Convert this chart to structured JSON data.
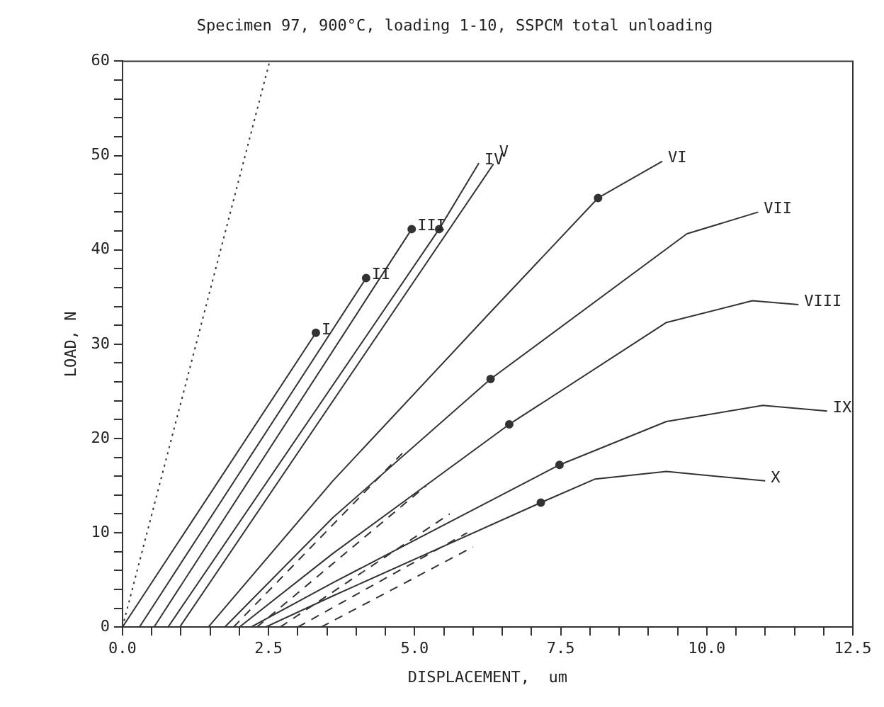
{
  "chart_data": {
    "type": "line",
    "title": "Specimen 97, 900°C, loading 1-10, SSPCM total unloading",
    "xlabel": "DISPLACEMENT,  um",
    "ylabel": "LOAD, N",
    "xlim": [
      0,
      12.5
    ],
    "ylim": [
      0,
      60
    ],
    "xticks": [
      {
        "value": 0,
        "label": "0.0"
      },
      {
        "value": 0.5,
        "label": null
      },
      {
        "value": 1,
        "label": null
      },
      {
        "value": 1.5,
        "label": null
      },
      {
        "value": 2,
        "label": null
      },
      {
        "value": 2.5,
        "label": "2.5"
      },
      {
        "value": 3,
        "label": null
      },
      {
        "value": 3.5,
        "label": null
      },
      {
        "value": 4,
        "label": null
      },
      {
        "value": 4.5,
        "label": null
      },
      {
        "value": 5,
        "label": "5.0"
      },
      {
        "value": 5.5,
        "label": null
      },
      {
        "value": 6,
        "label": null
      },
      {
        "value": 6.5,
        "label": null
      },
      {
        "value": 7,
        "label": null
      },
      {
        "value": 7.5,
        "label": "7.5"
      },
      {
        "value": 8,
        "label": null
      },
      {
        "value": 8.5,
        "label": null
      },
      {
        "value": 9,
        "label": null
      },
      {
        "value": 9.5,
        "label": null
      },
      {
        "value": 10,
        "label": "10.0"
      },
      {
        "value": 10.5,
        "label": null
      },
      {
        "value": 11,
        "label": null
      },
      {
        "value": 11.5,
        "label": null
      },
      {
        "value": 12,
        "label": null
      },
      {
        "value": 12.5,
        "label": "12.5"
      }
    ],
    "yticks": [
      0,
      {
        "value": 2,
        "label": null
      },
      {
        "value": 4,
        "label": null
      },
      {
        "value": 6,
        "label": null
      },
      {
        "value": 8,
        "label": null
      },
      10,
      {
        "value": 12,
        "label": null
      },
      {
        "value": 14,
        "label": null
      },
      {
        "value": 16,
        "label": null
      },
      {
        "value": 18,
        "label": null
      },
      20,
      {
        "value": 22,
        "label": null
      },
      {
        "value": 24,
        "label": null
      },
      {
        "value": 26,
        "label": null
      },
      {
        "value": 28,
        "label": null
      },
      30,
      {
        "value": 32,
        "label": null
      },
      {
        "value": 34,
        "label": null
      },
      {
        "value": 36,
        "label": null
      },
      {
        "value": 38,
        "label": null
      },
      40,
      {
        "value": 42,
        "label": null
      },
      {
        "value": 44,
        "label": null
      },
      {
        "value": 46,
        "label": null
      },
      {
        "value": 48,
        "label": null
      },
      50,
      {
        "value": 52,
        "label": null
      },
      {
        "value": 54,
        "label": null
      },
      {
        "value": 56,
        "label": null
      },
      {
        "value": 58,
        "label": null
      },
      60
    ],
    "grid": false,
    "legend": false,
    "series": [
      {
        "type": "line",
        "color": "#333333",
        "line_style": "dotted",
        "x": [
          0,
          2.52
        ],
        "values": [
          0,
          60
        ]
      },
      {
        "type": "line",
        "color": "#333333",
        "line_style": "solid",
        "x": [
          0,
          3.31
        ],
        "values": [
          0,
          31.2
        ]
      },
      {
        "type": "line",
        "color": "#333333",
        "line_style": "solid",
        "x": [
          0.29,
          4.17
        ],
        "values": [
          0,
          37.0
        ]
      },
      {
        "type": "line",
        "color": "#333333",
        "line_style": "solid",
        "x": [
          0.54,
          4.95
        ],
        "values": [
          0,
          42.2
        ]
      },
      {
        "type": "line",
        "color": "#333333",
        "line_style": "solid",
        "x": [
          0.78,
          5.42,
          6.1
        ],
        "values": [
          0,
          42.2,
          49.2
        ]
      },
      {
        "type": "line",
        "color": "#333333",
        "line_style": "solid",
        "x": [
          0.98,
          6.35
        ],
        "values": [
          0,
          49.1
        ]
      },
      {
        "type": "line",
        "color": "#333333",
        "line_style": "solid",
        "x": [
          1.47,
          3.6,
          6.3,
          8.14,
          9.24
        ],
        "values": [
          0,
          15.5,
          33.4,
          45.5,
          49.4
        ]
      },
      {
        "type": "line",
        "color": "#333333",
        "line_style": "solid",
        "x": [
          1.75,
          3.6,
          6.3,
          9.66,
          10.88
        ],
        "values": [
          0,
          11.6,
          26.3,
          41.7,
          44.0
        ]
      },
      {
        "type": "line",
        "color": "#333333",
        "line_style": "solid",
        "x": [
          2.0,
          3.6,
          6.62,
          9.31,
          10.78,
          11.57
        ],
        "values": [
          0,
          7.8,
          21.5,
          32.3,
          34.6,
          34.2
        ]
      },
      {
        "type": "line",
        "color": "#333333",
        "line_style": "solid",
        "x": [
          2.2,
          3.6,
          7.48,
          9.31,
          10.96,
          12.06
        ],
        "values": [
          0,
          4.7,
          17.2,
          21.8,
          23.5,
          22.9
        ]
      },
      {
        "type": "line",
        "color": "#333333",
        "line_style": "solid",
        "x": [
          2.45,
          3.6,
          7.16,
          8.09,
          9.31,
          11.0
        ],
        "values": [
          0,
          3.3,
          13.2,
          15.7,
          16.5,
          15.5
        ]
      },
      {
        "type": "line",
        "color": "#333333",
        "line_style": "dashed",
        "x": [
          1.9,
          4.8
        ],
        "values": [
          0,
          18.5
        ]
      },
      {
        "type": "line",
        "color": "#333333",
        "line_style": "dashed",
        "x": [
          2.3,
          5.2
        ],
        "values": [
          0,
          15
        ]
      },
      {
        "type": "line",
        "color": "#333333",
        "line_style": "dashed",
        "x": [
          2.7,
          5.6
        ],
        "values": [
          0,
          12
        ]
      },
      {
        "type": "line",
        "color": "#333333",
        "line_style": "dashed",
        "x": [
          3.0,
          5.9
        ],
        "values": [
          0,
          10
        ]
      },
      {
        "type": "line",
        "color": "#333333",
        "line_style": "dashed",
        "x": [
          3.4,
          6.0
        ],
        "values": [
          0,
          8.5
        ]
      },
      {
        "type": "scatter",
        "color": "#333333",
        "marker": "circle",
        "x": [
          3.31,
          4.17,
          4.95,
          5.42,
          8.14,
          6.3,
          6.62,
          7.48,
          7.16
        ],
        "values": [
          31.2,
          37.0,
          42.2,
          42.2,
          45.5,
          26.3,
          21.5,
          17.2,
          13.2
        ]
      }
    ],
    "annotations": [
      {
        "text": "I",
        "x": 3.31,
        "y": 31.2
      },
      {
        "text": "II",
        "x": 4.17,
        "y": 37.0
      },
      {
        "text": "III",
        "x": 4.95,
        "y": 42.2
      },
      {
        "text": "IV",
        "x": 6.1,
        "y": 49.2
      },
      {
        "text": "V",
        "x": 6.35,
        "y": 49.1
      },
      {
        "text": "VI",
        "x": 9.24,
        "y": 49.4
      },
      {
        "text": "VII",
        "x": 10.88,
        "y": 44.0
      },
      {
        "text": "VIII",
        "x": 11.57,
        "y": 34.2
      },
      {
        "text": "IX",
        "x": 12.06,
        "y": 22.9
      },
      {
        "text": "X",
        "x": 11.0,
        "y": 15.5
      }
    ]
  }
}
